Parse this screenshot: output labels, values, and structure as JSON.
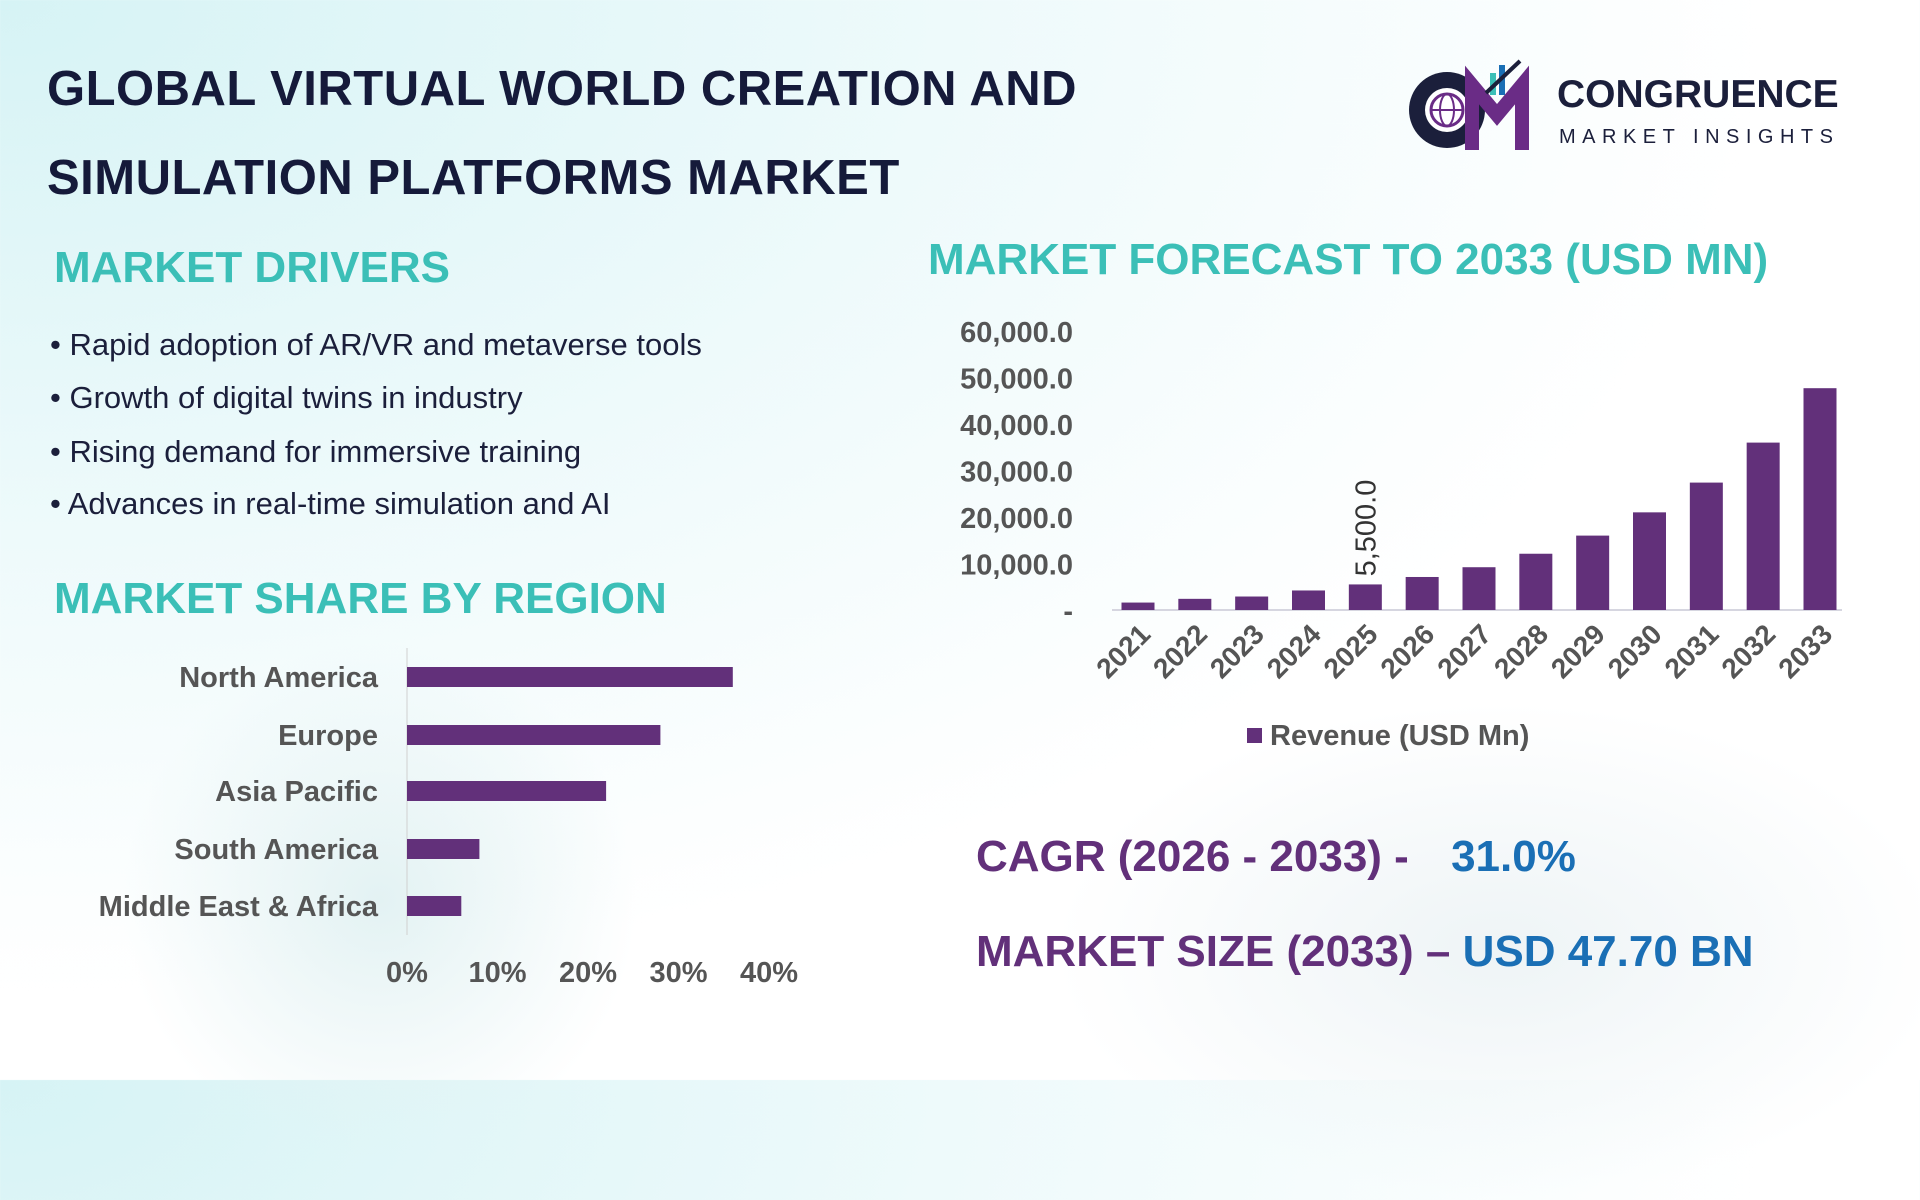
{
  "title": {
    "line1": "GLOBAL VIRTUAL WORLD CREATION AND",
    "line2": "SIMULATION PLATFORMS MARKET"
  },
  "logo": {
    "name": "CONGRUENCE",
    "tagline": "MARKET INSIGHTS",
    "colors": {
      "navy": "#1b1f3b",
      "purple": "#6a2c86"
    }
  },
  "drivers": {
    "heading": "MARKET DRIVERS",
    "items": [
      "• Rapid adoption of AR/VR and metaverse tools",
      "• Growth of digital twins in industry",
      "• Rising demand for immersive training",
      "• Advances in real-time simulation and AI"
    ]
  },
  "kpis": {
    "cagr_label": "CAGR (2026 - 2033) -",
    "cagr_value": "31.0%",
    "size_label": "MARKET SIZE (2033) –",
    "size_value": "USD 47.70 BN"
  },
  "colors": {
    "accent": "#3bbfb7",
    "bar": "#62307a",
    "kpi_label": "#62307a",
    "kpi_value": "#1a6fb5",
    "title": "#151a3a"
  },
  "chart_data": [
    {
      "type": "bar",
      "orientation": "horizontal",
      "title": "MARKET SHARE BY REGION",
      "categories": [
        "North America",
        "Europe",
        "Asia Pacific",
        "South America",
        "Middle East & Africa"
      ],
      "values": [
        36,
        28,
        22,
        8,
        6
      ],
      "xlim": [
        0,
        40
      ],
      "xticks": [
        "0%",
        "10%",
        "20%",
        "30%",
        "40%"
      ],
      "grid": false
    },
    {
      "type": "bar",
      "title": "MARKET FORECAST TO 2033 (USD MN)",
      "categories": [
        "2021",
        "2022",
        "2023",
        "2024",
        "2025",
        "2026",
        "2027",
        "2028",
        "2029",
        "2030",
        "2031",
        "2032",
        "2033"
      ],
      "series": [
        {
          "name": "Revenue (USD Mn)",
          "values": [
            1600,
            2400,
            2900,
            4200,
            5500,
            7100,
            9200,
            12100,
            16000,
            21000,
            27400,
            36000,
            47700
          ]
        }
      ],
      "ylim": [
        0,
        60000
      ],
      "yticks": [
        "-",
        "10,000.0",
        "20,000.0",
        "30,000.0",
        "40,000.0",
        "50,000.0",
        "60,000.0"
      ],
      "data_labels": [
        {
          "category": "2025",
          "text": "5,500.0"
        }
      ],
      "legend": "bottom",
      "grid": false
    }
  ]
}
